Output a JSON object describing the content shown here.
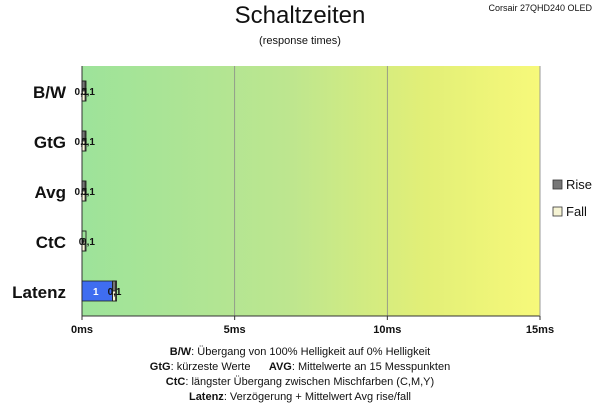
{
  "header": {
    "title": "Schaltzeiten",
    "subtitle": "(response times)",
    "device": "Corsair 27QHD240  OLED"
  },
  "legend": [
    {
      "label": "Rise",
      "color": "#777777"
    },
    {
      "label": "Fall",
      "color": "#f6f4d4"
    }
  ],
  "notes": {
    "line1": {
      "key": "B/W",
      "text": ":  Übergang von 100% Helligkeit auf 0% Helligkeit"
    },
    "line2": {
      "key1": "GtG",
      "text1": ": kürzeste  Werte",
      "key2": "AVG",
      "text2": ": Mittelwerte  an 15 Messpunkten"
    },
    "line3": {
      "key": "CtC",
      "text": ": längster Übergang  zwischen Mischfarben (C,M,Y)"
    },
    "line4": {
      "key": "Latenz",
      "text": ": Verzögerung  + Mittelwert Avg rise/fall"
    }
  },
  "chart_data": {
    "type": "bar",
    "orientation": "horizontal",
    "stacked": true,
    "categories": [
      "B/W",
      "GtG",
      "Avg",
      "CtC",
      "Latenz"
    ],
    "series": [
      {
        "name": "Latenz",
        "values": [
          0,
          0,
          0,
          0,
          1
        ],
        "color": "#3f6df0"
      },
      {
        "name": "Rise",
        "values": [
          0.1,
          0.1,
          0.1,
          0,
          0.1
        ],
        "color": "#777777"
      },
      {
        "name": "Fall",
        "values": [
          0.1,
          0.1,
          0.1,
          0.1,
          0.1
        ],
        "color": "#f6f4d4"
      }
    ],
    "value_labels": [
      [
        "0,1",
        "0,1"
      ],
      [
        "0,1",
        "0,1"
      ],
      [
        "0,1",
        "0,1"
      ],
      [
        "0",
        "0,1"
      ],
      [
        "1",
        "0,1"
      ]
    ],
    "xlim": [
      0,
      15
    ],
    "xticks": [
      0,
      5,
      10,
      15
    ],
    "xtick_labels": [
      "0ms",
      "5ms",
      "10ms",
      "15ms"
    ],
    "background_gradient": [
      "#9de39a",
      "#bde68f",
      "#e2ef77",
      "#f7f97a"
    ],
    "grid": true
  }
}
